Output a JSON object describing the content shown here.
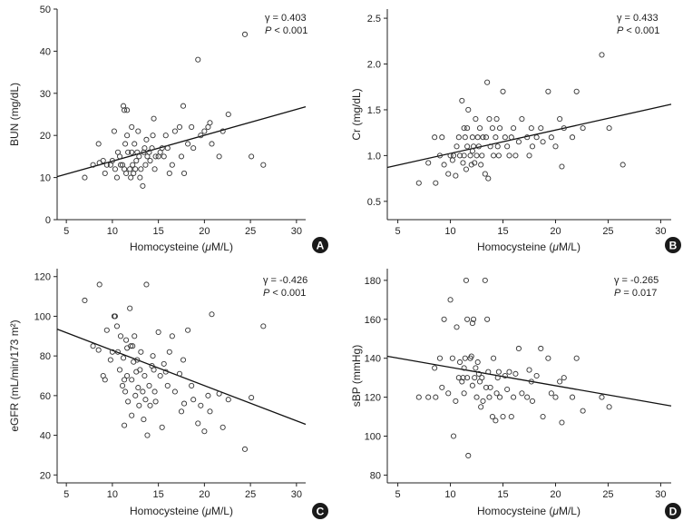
{
  "chart_data": [
    {
      "type": "scatter",
      "panel_label": "A",
      "xlabel": "Homocysteine (μM/L)",
      "ylabel": "BUN (mg/dL)",
      "xlim": [
        4,
        31
      ],
      "ylim": [
        0,
        50
      ],
      "xticks": [
        5,
        10,
        15,
        20,
        25,
        30
      ],
      "yticks": [
        0,
        10,
        20,
        30,
        40,
        50
      ],
      "gamma_text": "γ = 0.403",
      "p_text": "P < 0.001",
      "regression": [
        [
          4,
          10.2
        ],
        [
          31,
          26.8
        ]
      ],
      "points": [
        [
          7.0,
          10
        ],
        [
          7.9,
          13
        ],
        [
          8.5,
          18
        ],
        [
          8.6,
          13.5
        ],
        [
          9.0,
          14
        ],
        [
          9.2,
          11
        ],
        [
          9.4,
          13
        ],
        [
          9.8,
          13
        ],
        [
          10.0,
          14
        ],
        [
          10.2,
          21
        ],
        [
          10.3,
          12
        ],
        [
          10.5,
          10
        ],
        [
          10.6,
          16
        ],
        [
          10.8,
          15
        ],
        [
          10.9,
          13
        ],
        [
          11.1,
          13
        ],
        [
          11.2,
          27
        ],
        [
          11.3,
          26
        ],
        [
          11.3,
          12
        ],
        [
          11.4,
          18
        ],
        [
          11.5,
          11
        ],
        [
          11.6,
          26
        ],
        [
          11.6,
          20
        ],
        [
          11.7,
          16
        ],
        [
          11.9,
          12
        ],
        [
          12.0,
          10
        ],
        [
          12.1,
          22
        ],
        [
          12.1,
          16
        ],
        [
          12.2,
          13
        ],
        [
          12.3,
          11
        ],
        [
          12.4,
          18
        ],
        [
          12.5,
          12
        ],
        [
          12.6,
          14
        ],
        [
          12.7,
          16
        ],
        [
          12.8,
          21
        ],
        [
          12.9,
          15
        ],
        [
          13.0,
          10
        ],
        [
          13.1,
          12
        ],
        [
          13.3,
          8
        ],
        [
          13.4,
          16
        ],
        [
          13.5,
          17
        ],
        [
          13.6,
          13
        ],
        [
          13.7,
          19
        ],
        [
          13.8,
          15
        ],
        [
          14.0,
          16
        ],
        [
          14.1,
          14
        ],
        [
          14.3,
          17
        ],
        [
          14.4,
          20
        ],
        [
          14.5,
          24
        ],
        [
          14.6,
          12
        ],
        [
          14.7,
          15
        ],
        [
          15.0,
          15
        ],
        [
          15.2,
          16
        ],
        [
          15.4,
          17
        ],
        [
          15.6,
          15
        ],
        [
          15.8,
          20
        ],
        [
          16.0,
          17
        ],
        [
          16.2,
          11
        ],
        [
          16.5,
          13
        ],
        [
          16.8,
          21
        ],
        [
          17.3,
          22
        ],
        [
          17.5,
          15
        ],
        [
          17.7,
          27
        ],
        [
          17.8,
          11
        ],
        [
          18.2,
          18
        ],
        [
          18.6,
          22
        ],
        [
          18.8,
          17
        ],
        [
          19.3,
          38
        ],
        [
          19.6,
          20
        ],
        [
          20.0,
          21
        ],
        [
          20.4,
          22
        ],
        [
          20.6,
          23
        ],
        [
          20.8,
          18
        ],
        [
          21.6,
          15
        ],
        [
          22.0,
          21
        ],
        [
          22.6,
          25
        ],
        [
          24.4,
          44
        ],
        [
          25.1,
          15
        ],
        [
          26.4,
          13
        ]
      ]
    },
    {
      "type": "scatter",
      "panel_label": "B",
      "xlabel": "Homocysteine (μM/L)",
      "ylabel": "Cr (mg/dL)",
      "xlim": [
        4,
        31
      ],
      "ylim": [
        0.3,
        2.6
      ],
      "xticks": [
        5,
        10,
        15,
        20,
        25,
        30
      ],
      "yticks": [
        0.5,
        1.0,
        1.5,
        2.0,
        2.5
      ],
      "ytick_labels": [
        "0.5",
        "1.0",
        "1.5",
        "2.0",
        "2.5"
      ],
      "gamma_text": "γ = 0.433",
      "p_text": "P < 0.001",
      "regression": [
        [
          4,
          0.87
        ],
        [
          31,
          1.56
        ]
      ],
      "points": [
        [
          7.0,
          0.7
        ],
        [
          7.9,
          0.92
        ],
        [
          8.5,
          1.2
        ],
        [
          8.6,
          0.7
        ],
        [
          9.0,
          1.0
        ],
        [
          9.2,
          1.2
        ],
        [
          9.4,
          0.9
        ],
        [
          9.8,
          0.8
        ],
        [
          10.0,
          1.0
        ],
        [
          10.2,
          0.95
        ],
        [
          10.3,
          1.0
        ],
        [
          10.5,
          0.78
        ],
        [
          10.6,
          1.1
        ],
        [
          10.8,
          1.2
        ],
        [
          10.9,
          1.0
        ],
        [
          11.1,
          1.6
        ],
        [
          11.2,
          0.92
        ],
        [
          11.3,
          1.3
        ],
        [
          11.3,
          1.0
        ],
        [
          11.4,
          1.2
        ],
        [
          11.5,
          0.85
        ],
        [
          11.6,
          1.3
        ],
        [
          11.6,
          1.1
        ],
        [
          11.7,
          1.5
        ],
        [
          11.9,
          1.0
        ],
        [
          12.0,
          0.9
        ],
        [
          12.1,
          1.2
        ],
        [
          12.1,
          1.05
        ],
        [
          12.2,
          1.1
        ],
        [
          12.3,
          0.92
        ],
        [
          12.4,
          1.4
        ],
        [
          12.5,
          1.0
        ],
        [
          12.6,
          1.2
        ],
        [
          12.7,
          1.1
        ],
        [
          12.8,
          1.3
        ],
        [
          12.9,
          0.9
        ],
        [
          13.0,
          1.0
        ],
        [
          13.1,
          1.2
        ],
        [
          13.3,
          0.8
        ],
        [
          13.4,
          1.2
        ],
        [
          13.5,
          1.8
        ],
        [
          13.6,
          0.75
        ],
        [
          13.7,
          1.4
        ],
        [
          13.8,
          1.1
        ],
        [
          14.0,
          1.3
        ],
        [
          14.1,
          1.0
        ],
        [
          14.3,
          1.2
        ],
        [
          14.4,
          1.4
        ],
        [
          14.5,
          1.1
        ],
        [
          14.6,
          1.0
        ],
        [
          14.7,
          1.3
        ],
        [
          15.0,
          1.7
        ],
        [
          15.2,
          1.2
        ],
        [
          15.4,
          1.1
        ],
        [
          15.6,
          1.0
        ],
        [
          15.8,
          1.2
        ],
        [
          16.0,
          1.3
        ],
        [
          16.2,
          1.0
        ],
        [
          16.5,
          1.15
        ],
        [
          16.8,
          1.4
        ],
        [
          17.3,
          1.2
        ],
        [
          17.5,
          1.0
        ],
        [
          17.7,
          1.3
        ],
        [
          17.8,
          1.1
        ],
        [
          18.2,
          1.2
        ],
        [
          18.6,
          1.3
        ],
        [
          18.8,
          1.15
        ],
        [
          19.3,
          1.7
        ],
        [
          19.6,
          1.2
        ],
        [
          20.0,
          1.1
        ],
        [
          20.4,
          1.4
        ],
        [
          20.6,
          0.88
        ],
        [
          20.8,
          1.3
        ],
        [
          21.6,
          1.2
        ],
        [
          22.0,
          1.7
        ],
        [
          22.6,
          1.3
        ],
        [
          24.4,
          2.1
        ],
        [
          25.1,
          1.3
        ],
        [
          26.4,
          0.9
        ]
      ]
    },
    {
      "type": "scatter",
      "panel_label": "C",
      "xlabel": "Homocysteine (μM/L)",
      "ylabel": "eGFR (mL/min/173 m²)",
      "xlim": [
        4,
        31
      ],
      "ylim": [
        16,
        124
      ],
      "xticks": [
        5,
        10,
        15,
        20,
        25,
        30
      ],
      "yticks": [
        20,
        40,
        60,
        80,
        100,
        120
      ],
      "gamma_text": "γ = -0.426",
      "p_text": "P < 0.001",
      "regression": [
        [
          4,
          93.5
        ],
        [
          31,
          45.5
        ]
      ],
      "points": [
        [
          7.0,
          108
        ],
        [
          7.9,
          85
        ],
        [
          8.5,
          83
        ],
        [
          8.6,
          116
        ],
        [
          9.0,
          70
        ],
        [
          9.2,
          68
        ],
        [
          9.4,
          93
        ],
        [
          9.8,
          78
        ],
        [
          10.0,
          82
        ],
        [
          10.2,
          100
        ],
        [
          10.3,
          100
        ],
        [
          10.5,
          95
        ],
        [
          10.6,
          82
        ],
        [
          10.8,
          73
        ],
        [
          10.9,
          90
        ],
        [
          11.1,
          65
        ],
        [
          11.2,
          79
        ],
        [
          11.3,
          45
        ],
        [
          11.3,
          68
        ],
        [
          11.4,
          62
        ],
        [
          11.5,
          88
        ],
        [
          11.6,
          84
        ],
        [
          11.6,
          70
        ],
        [
          11.7,
          57
        ],
        [
          11.9,
          104
        ],
        [
          12.0,
          85
        ],
        [
          12.1,
          68
        ],
        [
          12.1,
          50
        ],
        [
          12.2,
          85
        ],
        [
          12.3,
          77
        ],
        [
          12.4,
          90
        ],
        [
          12.5,
          60
        ],
        [
          12.6,
          72
        ],
        [
          12.7,
          78
        ],
        [
          12.8,
          64
        ],
        [
          12.9,
          55
        ],
        [
          13.0,
          73
        ],
        [
          13.1,
          82
        ],
        [
          13.3,
          62
        ],
        [
          13.4,
          48
        ],
        [
          13.5,
          70
        ],
        [
          13.6,
          58
        ],
        [
          13.7,
          116
        ],
        [
          13.8,
          40
        ],
        [
          14.0,
          65
        ],
        [
          14.1,
          55
        ],
        [
          14.3,
          75
        ],
        [
          14.4,
          80
        ],
        [
          14.5,
          73
        ],
        [
          14.6,
          62
        ],
        [
          14.7,
          57
        ],
        [
          15.0,
          92
        ],
        [
          15.2,
          70
        ],
        [
          15.4,
          44
        ],
        [
          15.6,
          76
        ],
        [
          15.8,
          72
        ],
        [
          16.0,
          65
        ],
        [
          16.2,
          82
        ],
        [
          16.5,
          90
        ],
        [
          16.8,
          62
        ],
        [
          17.3,
          71
        ],
        [
          17.5,
          52
        ],
        [
          17.7,
          78
        ],
        [
          17.8,
          56
        ],
        [
          18.2,
          93
        ],
        [
          18.6,
          65
        ],
        [
          18.8,
          58
        ],
        [
          19.3,
          46
        ],
        [
          19.6,
          55
        ],
        [
          20.0,
          42
        ],
        [
          20.4,
          60
        ],
        [
          20.6,
          52
        ],
        [
          20.8,
          101
        ],
        [
          21.6,
          61
        ],
        [
          22.0,
          44
        ],
        [
          22.6,
          58
        ],
        [
          24.4,
          33
        ],
        [
          25.1,
          59
        ],
        [
          26.4,
          95
        ]
      ]
    },
    {
      "type": "scatter",
      "panel_label": "D",
      "xlabel": "Homocysteine (μM/L)",
      "ylabel": "sBP (mmHg)",
      "xlim": [
        4,
        31
      ],
      "ylim": [
        76,
        186
      ],
      "xticks": [
        5,
        10,
        15,
        20,
        25,
        30
      ],
      "yticks": [
        80,
        100,
        120,
        140,
        160,
        180
      ],
      "gamma_text": "γ = -0.265",
      "p_text": "P = 0.017",
      "regression": [
        [
          4,
          141
        ],
        [
          31,
          115.5
        ]
      ],
      "points": [
        [
          7.0,
          120
        ],
        [
          7.9,
          120
        ],
        [
          8.5,
          135
        ],
        [
          8.6,
          120
        ],
        [
          9.0,
          140
        ],
        [
          9.2,
          125
        ],
        [
          9.4,
          160
        ],
        [
          9.8,
          122
        ],
        [
          10.0,
          170
        ],
        [
          10.2,
          140
        ],
        [
          10.3,
          100
        ],
        [
          10.5,
          118
        ],
        [
          10.6,
          156
        ],
        [
          10.8,
          130
        ],
        [
          10.9,
          138
        ],
        [
          11.1,
          128
        ],
        [
          11.2,
          130
        ],
        [
          11.3,
          135
        ],
        [
          11.3,
          122
        ],
        [
          11.4,
          140
        ],
        [
          11.5,
          180
        ],
        [
          11.6,
          130
        ],
        [
          11.6,
          160
        ],
        [
          11.7,
          90
        ],
        [
          11.9,
          140
        ],
        [
          12.0,
          141
        ],
        [
          12.1,
          158
        ],
        [
          12.1,
          126
        ],
        [
          12.2,
          160
        ],
        [
          12.3,
          130
        ],
        [
          12.4,
          135
        ],
        [
          12.5,
          120
        ],
        [
          12.6,
          138
        ],
        [
          12.7,
          132
        ],
        [
          12.8,
          128
        ],
        [
          12.9,
          115
        ],
        [
          13.0,
          130
        ],
        [
          13.1,
          118
        ],
        [
          13.3,
          180
        ],
        [
          13.4,
          125
        ],
        [
          13.5,
          160
        ],
        [
          13.6,
          133
        ],
        [
          13.7,
          120
        ],
        [
          13.8,
          125
        ],
        [
          14.0,
          110
        ],
        [
          14.1,
          140
        ],
        [
          14.3,
          108
        ],
        [
          14.4,
          122
        ],
        [
          14.5,
          130
        ],
        [
          14.6,
          133
        ],
        [
          14.7,
          120
        ],
        [
          15.0,
          110
        ],
        [
          15.2,
          131
        ],
        [
          15.4,
          124
        ],
        [
          15.6,
          133
        ],
        [
          15.8,
          110
        ],
        [
          16.0,
          120
        ],
        [
          16.2,
          132
        ],
        [
          16.5,
          145
        ],
        [
          16.8,
          122
        ],
        [
          17.3,
          120
        ],
        [
          17.5,
          134
        ],
        [
          17.7,
          128
        ],
        [
          17.8,
          118
        ],
        [
          18.2,
          131
        ],
        [
          18.6,
          145
        ],
        [
          18.8,
          110
        ],
        [
          19.3,
          140
        ],
        [
          19.6,
          122
        ],
        [
          20.0,
          120
        ],
        [
          20.4,
          128
        ],
        [
          20.6,
          107
        ],
        [
          20.8,
          130
        ],
        [
          21.6,
          120
        ],
        [
          22.0,
          140
        ],
        [
          22.6,
          113
        ],
        [
          24.4,
          120
        ],
        [
          25.1,
          115
        ]
      ]
    }
  ]
}
